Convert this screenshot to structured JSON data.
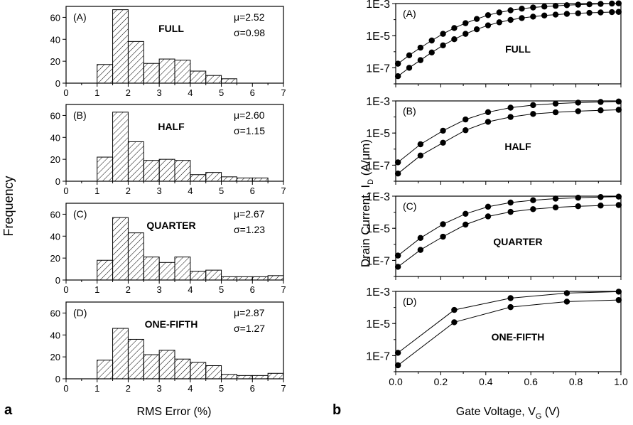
{
  "panel_a": {
    "label": "a",
    "ylabel": "Frequency",
    "xlabel": "RMS Error (%)",
    "x_ticks": [
      "0",
      "1",
      "2",
      "3",
      "4",
      "5",
      "6",
      "7"
    ],
    "y_ticks": [
      "0",
      "20",
      "40",
      "60"
    ]
  },
  "panel_b": {
    "label": "b",
    "ylabel": "Drain Current, I_D (A/μm)",
    "ylabel_main": "Drain Current, I",
    "ylabel_sub": "D",
    "ylabel_tail": " (A/μm)",
    "xlabel": "Gate Voltage, V_G (V)",
    "xlabel_main": "Gate Voltage, V",
    "xlabel_sub": "G",
    "xlabel_tail": " (V)",
    "x_ticks": [
      "0.0",
      "0.2",
      "0.4",
      "0.6",
      "0.8",
      "1.0"
    ],
    "y_ticks": [
      "1E-7",
      "1E-5",
      "1E-3"
    ]
  },
  "chart_data": [
    {
      "type": "bar",
      "panel": "(A)",
      "title": "FULL",
      "stats": [
        "μ=2.52",
        "σ=0.98"
      ],
      "bin_edges": [
        1,
        1.5,
        2,
        2.5,
        3,
        3.5,
        4,
        4.5,
        5,
        5.5
      ],
      "values": [
        17,
        67,
        38,
        18,
        22,
        21,
        11,
        7,
        4
      ],
      "xlim": [
        0,
        7
      ],
      "ylim": [
        0,
        70
      ]
    },
    {
      "type": "bar",
      "panel": "(B)",
      "title": "HALF",
      "stats": [
        "μ=2.60",
        "σ=1.15"
      ],
      "bin_edges": [
        1,
        1.5,
        2,
        2.5,
        3,
        3.5,
        4,
        4.5,
        5,
        5.5,
        6,
        6.5
      ],
      "values": [
        22,
        63,
        36,
        19,
        20,
        19,
        6,
        8,
        4,
        3,
        3
      ],
      "xlim": [
        0,
        7
      ],
      "ylim": [
        0,
        70
      ]
    },
    {
      "type": "bar",
      "panel": "(C)",
      "title": "QUARTER",
      "stats": [
        "μ=2.67",
        "σ=1.23"
      ],
      "bin_edges": [
        1,
        1.5,
        2,
        2.5,
        3,
        3.5,
        4,
        4.5,
        5,
        5.5,
        6,
        6.5,
        7
      ],
      "values": [
        18,
        57,
        43,
        21,
        16,
        21,
        8,
        9,
        3,
        3,
        3,
        4
      ],
      "xlim": [
        0,
        7
      ],
      "ylim": [
        0,
        70
      ]
    },
    {
      "type": "bar",
      "panel": "(D)",
      "title": "ONE-FIFTH",
      "stats": [
        "μ=2.87",
        "σ=1.27"
      ],
      "bin_edges": [
        1,
        1.5,
        2,
        2.5,
        3,
        3.5,
        4,
        4.5,
        5,
        5.5,
        6,
        6.5,
        7
      ],
      "values": [
        17,
        46,
        36,
        22,
        26,
        18,
        15,
        12,
        4,
        3,
        3,
        5
      ],
      "xlim": [
        0,
        7
      ],
      "ylim": [
        0,
        70
      ]
    },
    {
      "type": "line",
      "panel": "(A)",
      "title": "FULL",
      "y_scale": "log",
      "xlim": [
        0,
        1
      ],
      "ylim": [
        1e-08,
        0.001
      ],
      "series": [
        {
          "x": [
            0.01,
            0.06,
            0.11,
            0.16,
            0.21,
            0.26,
            0.31,
            0.36,
            0.41,
            0.46,
            0.51,
            0.56,
            0.61,
            0.66,
            0.71,
            0.76,
            0.81,
            0.86,
            0.91,
            0.96,
            0.99
          ],
          "y": [
            1.8e-07,
            6e-07,
            1.8e-06,
            5e-06,
            1.3e-05,
            3e-05,
            6e-05,
            0.00011,
            0.00019,
            0.00028,
            0.00038,
            0.00048,
            0.00057,
            0.00065,
            0.00072,
            0.00079,
            0.00085,
            0.0009,
            0.00095,
            0.001,
            0.00103
          ]
        },
        {
          "x": [
            0.01,
            0.06,
            0.11,
            0.16,
            0.21,
            0.26,
            0.31,
            0.36,
            0.41,
            0.46,
            0.51,
            0.56,
            0.61,
            0.66,
            0.71,
            0.76,
            0.81,
            0.86,
            0.91,
            0.96,
            0.99
          ],
          "y": [
            3e-08,
            1e-07,
            3e-07,
            9e-07,
            2.5e-06,
            6e-06,
            1.3e-05,
            2.5e-05,
            4.4e-05,
            6.8e-05,
            9.6e-05,
            0.000125,
            0.000153,
            0.00018,
            0.000205,
            0.000228,
            0.000248,
            0.000265,
            0.00028,
            0.000293,
            0.000302
          ]
        }
      ]
    },
    {
      "type": "line",
      "panel": "(B)",
      "title": "HALF",
      "y_scale": "log",
      "xlim": [
        0,
        1
      ],
      "ylim": [
        1e-08,
        0.001
      ],
      "series": [
        {
          "x": [
            0.01,
            0.11,
            0.21,
            0.31,
            0.41,
            0.51,
            0.61,
            0.71,
            0.81,
            0.91,
            0.99
          ],
          "y": [
            1.5e-07,
            2e-06,
            1.4e-05,
            7e-05,
            0.0002,
            0.00038,
            0.00055,
            0.00068,
            0.00078,
            0.00086,
            0.00092
          ]
        },
        {
          "x": [
            0.01,
            0.11,
            0.21,
            0.31,
            0.41,
            0.51,
            0.61,
            0.71,
            0.81,
            0.91,
            0.99
          ],
          "y": [
            3e-08,
            4e-07,
            2.5e-06,
            1.5e-05,
            5e-05,
            0.0001,
            0.000155,
            0.000195,
            0.00023,
            0.00026,
            0.00028
          ]
        }
      ]
    },
    {
      "type": "line",
      "panel": "(C)",
      "title": "QUARTER",
      "y_scale": "log",
      "xlim": [
        0,
        1
      ],
      "ylim": [
        1e-08,
        0.001
      ],
      "series": [
        {
          "x": [
            0.01,
            0.11,
            0.21,
            0.31,
            0.41,
            0.51,
            0.61,
            0.71,
            0.81,
            0.91,
            0.99
          ],
          "y": [
            2e-07,
            2.5e-06,
            1.8e-05,
            8e-05,
            0.00022,
            0.0004,
            0.00056,
            0.0007,
            0.0008,
            0.00088,
            0.00093
          ]
        },
        {
          "x": [
            0.01,
            0.11,
            0.21,
            0.31,
            0.41,
            0.51,
            0.61,
            0.71,
            0.81,
            0.91,
            0.99
          ],
          "y": [
            4e-08,
            4.5e-07,
            3e-06,
            1.7e-05,
            5.5e-05,
            0.000105,
            0.000155,
            0.0002,
            0.000235,
            0.00026,
            0.00028
          ]
        }
      ]
    },
    {
      "type": "line",
      "panel": "(D)",
      "title": "ONE-FIFTH",
      "y_scale": "log",
      "xlim": [
        0,
        1
      ],
      "ylim": [
        1e-08,
        0.001
      ],
      "series": [
        {
          "x": [
            0.01,
            0.26,
            0.51,
            0.76,
            0.99
          ],
          "y": [
            1.5e-07,
            7e-05,
            0.00038,
            0.00078,
            0.00096
          ]
        },
        {
          "x": [
            0.01,
            0.26,
            0.51,
            0.76,
            0.99
          ],
          "y": [
            2.5e-08,
            1.2e-05,
            0.000105,
            0.00023,
            0.00029
          ]
        }
      ]
    }
  ]
}
